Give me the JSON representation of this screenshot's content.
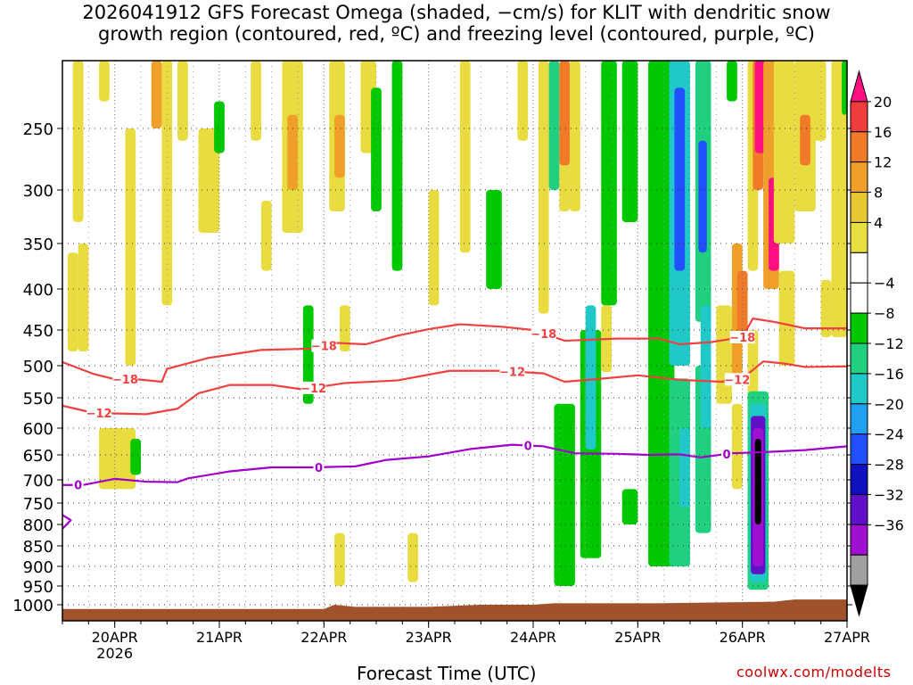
{
  "title": {
    "line1": "2026041912 GFS Forecast Omega (shaded, −cm/s) for KLIT with dendritic snow",
    "line2": "growth region (contoured, red, ºC) and freezing level (contoured, purple, ºC)"
  },
  "credit": "coolwx.com/modelts",
  "chart_data": {
    "type": "heatmap",
    "xlabel": "Forecast Time (UTC)",
    "ylabel": "",
    "x_ticks": [
      {
        "label": "20APR",
        "sub": "2026"
      },
      {
        "label": "21APR",
        "sub": ""
      },
      {
        "label": "22APR",
        "sub": ""
      },
      {
        "label": "23APR",
        "sub": ""
      },
      {
        "label": "24APR",
        "sub": ""
      },
      {
        "label": "25APR",
        "sub": ""
      },
      {
        "label": "26APR",
        "sub": ""
      },
      {
        "label": "27APR",
        "sub": ""
      }
    ],
    "xlim_days": [
      19.5,
      27.0
    ],
    "y_ticks": [
      "250",
      "300",
      "350",
      "400",
      "450",
      "500",
      "550",
      "600",
      "650",
      "700",
      "750",
      "800",
      "850",
      "900",
      "950",
      "1000"
    ],
    "y_units": "hPa",
    "colorbar": {
      "labels": [
        "20",
        "16",
        "12",
        "8",
        "4",
        "−4",
        "−8",
        "−12",
        "−16",
        "−20",
        "−24",
        "−28",
        "−32",
        "−36"
      ],
      "colors": [
        "#ff1080",
        "#f03c3c",
        "#f07a28",
        "#f0a028",
        "#e8c830",
        "#e8e040",
        "#ffffff",
        "#ffffff",
        "#00c800",
        "#20d080",
        "#20c8c8",
        "#20a0f0",
        "#2050ff",
        "#1010c0",
        "#6010c8",
        "#a010d0",
        "#a0a0a0",
        "#000000"
      ]
    },
    "contours": [
      {
        "name": "−18",
        "color": "#f04040",
        "label": "−18",
        "points": [
          [
            19.5,
            495
          ],
          [
            19.8,
            513
          ],
          [
            20.0,
            521
          ],
          [
            20.2,
            521
          ],
          [
            20.45,
            525
          ],
          [
            20.5,
            505
          ],
          [
            20.9,
            489
          ],
          [
            21.4,
            478
          ],
          [
            21.9,
            476
          ],
          [
            22.1,
            468
          ],
          [
            22.4,
            470
          ],
          [
            22.7,
            458
          ],
          [
            23.0,
            449
          ],
          [
            23.3,
            443
          ],
          [
            23.7,
            446
          ],
          [
            24.0,
            450
          ],
          [
            24.3,
            465
          ],
          [
            24.8,
            462
          ],
          [
            25.2,
            462
          ],
          [
            25.4,
            470
          ],
          [
            25.7,
            467
          ],
          [
            26.0,
            460
          ],
          [
            26.1,
            436
          ],
          [
            26.3,
            440
          ],
          [
            26.6,
            448
          ],
          [
            27.0,
            448
          ]
        ]
      },
      {
        "name": "−12",
        "color": "#f04040",
        "label": "−12",
        "points": [
          [
            19.5,
            563
          ],
          [
            19.8,
            575
          ],
          [
            20.3,
            577
          ],
          [
            20.6,
            568
          ],
          [
            20.8,
            543
          ],
          [
            21.1,
            530
          ],
          [
            21.5,
            530
          ],
          [
            21.8,
            537
          ],
          [
            22.2,
            527
          ],
          [
            22.7,
            523
          ],
          [
            23.2,
            508
          ],
          [
            23.7,
            508
          ],
          [
            24.1,
            512
          ],
          [
            24.3,
            525
          ],
          [
            24.6,
            521
          ],
          [
            25.0,
            515
          ],
          [
            25.4,
            522
          ],
          [
            25.8,
            525
          ],
          [
            26.0,
            520
          ],
          [
            26.2,
            494
          ],
          [
            26.4,
            497
          ],
          [
            26.6,
            502
          ],
          [
            27.0,
            501
          ]
        ]
      },
      {
        "name": "0",
        "color": "#a000c8",
        "label": "0",
        "points": [
          [
            19.5,
            711
          ],
          [
            19.7,
            711
          ],
          [
            20.0,
            698
          ],
          [
            20.3,
            704
          ],
          [
            20.6,
            705
          ],
          [
            20.7,
            697
          ],
          [
            21.1,
            683
          ],
          [
            21.5,
            675
          ],
          [
            21.9,
            675
          ],
          [
            22.3,
            673
          ],
          [
            22.6,
            660
          ],
          [
            23.0,
            653
          ],
          [
            23.4,
            639
          ],
          [
            23.8,
            631
          ],
          [
            24.1,
            634
          ],
          [
            24.4,
            647
          ],
          [
            24.8,
            648
          ],
          [
            25.1,
            650
          ],
          [
            25.4,
            649
          ],
          [
            25.6,
            655
          ],
          [
            25.9,
            647
          ],
          [
            26.2,
            645
          ],
          [
            26.6,
            641
          ],
          [
            27.0,
            634
          ]
        ]
      },
      {
        "name": "0",
        "color": "#a000c8",
        "label": "",
        "points": [
          [
            19.5,
            778
          ],
          [
            19.58,
            790
          ],
          [
            19.5,
            810
          ]
        ]
      }
    ],
    "omega_cells": [
      {
        "x": [
          19.55,
          19.65
        ],
        "p": [
          360,
          480
        ],
        "v": 5
      },
      {
        "x": [
          19.6,
          19.7
        ],
        "p": [
          180,
          330
        ],
        "v": 5
      },
      {
        "x": [
          19.65,
          19.75
        ],
        "p": [
          350,
          480
        ],
        "v": 5
      },
      {
        "x": [
          19.85,
          19.95
        ],
        "p": [
          180,
          230
        ],
        "v": 6
      },
      {
        "x": [
          19.85,
          20.2
        ],
        "p": [
          600,
          720
        ],
        "v": 5
      },
      {
        "x": [
          20.1,
          20.2
        ],
        "p": [
          250,
          500
        ],
        "v": 5
      },
      {
        "x": [
          20.15,
          20.25
        ],
        "p": [
          620,
          690
        ],
        "v": -6
      },
      {
        "x": [
          20.35,
          20.45
        ],
        "p": [
          150,
          250
        ],
        "v": 8
      },
      {
        "x": [
          20.45,
          20.55
        ],
        "p": [
          170,
          420
        ],
        "v": 5
      },
      {
        "x": [
          20.6,
          20.7
        ],
        "p": [
          180,
          260
        ],
        "v": 5
      },
      {
        "x": [
          20.8,
          21.0
        ],
        "p": [
          250,
          340
        ],
        "v": 5
      },
      {
        "x": [
          20.95,
          21.05
        ],
        "p": [
          230,
          270
        ],
        "v": -5
      },
      {
        "x": [
          21.3,
          21.4
        ],
        "p": [
          170,
          260
        ],
        "v": 5
      },
      {
        "x": [
          21.4,
          21.5
        ],
        "p": [
          310,
          380
        ],
        "v": 5
      },
      {
        "x": [
          21.6,
          21.8
        ],
        "p": [
          180,
          340
        ],
        "v": 5
      },
      {
        "x": [
          21.65,
          21.75
        ],
        "p": [
          240,
          300
        ],
        "v": 9
      },
      {
        "x": [
          21.8,
          21.9
        ],
        "p": [
          420,
          560
        ],
        "v": -6
      },
      {
        "x": [
          22.05,
          22.2
        ],
        "p": [
          180,
          320
        ],
        "v": 6
      },
      {
        "x": [
          22.1,
          22.2
        ],
        "p": [
          240,
          290
        ],
        "v": 10
      },
      {
        "x": [
          22.1,
          22.2
        ],
        "p": [
          820,
          950
        ],
        "v": 5
      },
      {
        "x": [
          22.15,
          22.25
        ],
        "p": [
          420,
          480
        ],
        "v": 5
      },
      {
        "x": [
          22.35,
          22.5
        ],
        "p": [
          180,
          270
        ],
        "v": 5
      },
      {
        "x": [
          22.45,
          22.55
        ],
        "p": [
          220,
          320
        ],
        "v": -6
      },
      {
        "x": [
          22.65,
          22.75
        ],
        "p": [
          180,
          380
        ],
        "v": -6
      },
      {
        "x": [
          22.8,
          22.9
        ],
        "p": [
          820,
          940
        ],
        "v": 5
      },
      {
        "x": [
          23.0,
          23.1
        ],
        "p": [
          300,
          420
        ],
        "v": 5
      },
      {
        "x": [
          23.3,
          23.4
        ],
        "p": [
          200,
          360
        ],
        "v": 5
      },
      {
        "x": [
          23.55,
          23.7
        ],
        "p": [
          300,
          400
        ],
        "v": -6
      },
      {
        "x": [
          23.85,
          23.95
        ],
        "p": [
          170,
          260
        ],
        "v": 5
      },
      {
        "x": [
          24.05,
          24.15
        ],
        "p": [
          200,
          430
        ],
        "v": 5
      },
      {
        "x": [
          24.15,
          24.25
        ],
        "p": [
          150,
          300
        ],
        "v": -8
      },
      {
        "x": [
          24.25,
          24.35
        ],
        "p": [
          150,
          320
        ],
        "v": 6
      },
      {
        "x": [
          24.25,
          24.35
        ],
        "p": [
          190,
          280
        ],
        "v": 12
      },
      {
        "x": [
          24.35,
          24.45
        ],
        "p": [
          150,
          320
        ],
        "v": 5
      },
      {
        "x": [
          24.2,
          24.4
        ],
        "p": [
          560,
          950
        ],
        "v": -6
      },
      {
        "x": [
          24.45,
          24.65
        ],
        "p": [
          450,
          880
        ],
        "v": -7
      },
      {
        "x": [
          24.5,
          24.6
        ],
        "p": [
          420,
          640
        ],
        "v": -12
      },
      {
        "x": [
          24.65,
          24.8
        ],
        "p": [
          180,
          420
        ],
        "v": -6
      },
      {
        "x": [
          24.65,
          24.75
        ],
        "p": [
          420,
          510
        ],
        "v": 5
      },
      {
        "x": [
          24.85,
          25.0
        ],
        "p": [
          150,
          330
        ],
        "v": -6
      },
      {
        "x": [
          24.85,
          25.0
        ],
        "p": [
          720,
          800
        ],
        "v": -6
      },
      {
        "x": [
          25.1,
          25.35
        ],
        "p": [
          150,
          900
        ],
        "v": -7
      },
      {
        "x": [
          25.15,
          25.25
        ],
        "p": [
          180,
          460
        ],
        "v": -6
      },
      {
        "x": [
          25.3,
          25.5
        ],
        "p": [
          150,
          500
        ],
        "v": -12
      },
      {
        "x": [
          25.35,
          25.45
        ],
        "p": [
          220,
          380
        ],
        "v": -20
      },
      {
        "x": [
          25.3,
          25.5
        ],
        "p": [
          520,
          900
        ],
        "v": -8
      },
      {
        "x": [
          25.4,
          25.5
        ],
        "p": [
          600,
          760
        ],
        "v": -12
      },
      {
        "x": [
          25.55,
          25.7
        ],
        "p": [
          180,
          440
        ],
        "v": -10
      },
      {
        "x": [
          25.58,
          25.66
        ],
        "p": [
          260,
          360
        ],
        "v": -20
      },
      {
        "x": [
          25.55,
          25.7
        ],
        "p": [
          500,
          820
        ],
        "v": -8
      },
      {
        "x": [
          25.6,
          25.7
        ],
        "p": [
          420,
          600
        ],
        "v": -12
      },
      {
        "x": [
          25.85,
          25.95
        ],
        "p": [
          160,
          230
        ],
        "v": -6
      },
      {
        "x": [
          25.75,
          25.9
        ],
        "p": [
          420,
          560
        ],
        "v": 5
      },
      {
        "x": [
          25.9,
          26.0
        ],
        "p": [
          350,
          520
        ],
        "v": 8
      },
      {
        "x": [
          25.95,
          26.05
        ],
        "p": [
          380,
          460
        ],
        "v": 12
      },
      {
        "x": [
          25.9,
          26.0
        ],
        "p": [
          560,
          720
        ],
        "v": 5
      },
      {
        "x": [
          26.05,
          26.15
        ],
        "p": [
          200,
          380
        ],
        "v": 6
      },
      {
        "x": [
          26.05,
          26.15
        ],
        "p": [
          450,
          580
        ],
        "v": 5
      },
      {
        "x": [
          26.1,
          26.2
        ],
        "p": [
          150,
          300
        ],
        "v": 14
      },
      {
        "x": [
          26.12,
          26.22
        ],
        "p": [
          160,
          270
        ],
        "v": 20
      },
      {
        "x": [
          26.05,
          26.25
        ],
        "p": [
          540,
          960
        ],
        "v": -8
      },
      {
        "x": [
          26.07,
          26.23
        ],
        "p": [
          560,
          940
        ],
        "v": -14
      },
      {
        "x": [
          26.08,
          26.22
        ],
        "p": [
          580,
          920
        ],
        "v": -24
      },
      {
        "x": [
          26.1,
          26.2
        ],
        "p": [
          600,
          900
        ],
        "v": -30
      },
      {
        "x": [
          26.12,
          26.18
        ],
        "p": [
          620,
          800
        ],
        "v": -40
      },
      {
        "x": [
          26.2,
          26.35
        ],
        "p": [
          160,
          400
        ],
        "v": 10
      },
      {
        "x": [
          26.25,
          26.35
        ],
        "p": [
          290,
          380
        ],
        "v": 20
      },
      {
        "x": [
          26.3,
          26.5
        ],
        "p": [
          180,
          350
        ],
        "v": 7
      },
      {
        "x": [
          26.35,
          26.5
        ],
        "p": [
          380,
          500
        ],
        "v": 5
      },
      {
        "x": [
          26.5,
          26.7
        ],
        "p": [
          170,
          320
        ],
        "v": 7
      },
      {
        "x": [
          26.55,
          26.65
        ],
        "p": [
          240,
          280
        ],
        "v": 13
      },
      {
        "x": [
          26.65,
          26.8
        ],
        "p": [
          170,
          260
        ],
        "v": 6
      },
      {
        "x": [
          26.75,
          26.85
        ],
        "p": [
          390,
          460
        ],
        "v": 5
      },
      {
        "x": [
          26.85,
          27.0
        ],
        "p": [
          180,
          460
        ],
        "v": 5
      },
      {
        "x": [
          26.95,
          27.0
        ],
        "p": [
          150,
          240
        ],
        "v": -6
      }
    ],
    "terrain": {
      "color": "#a0522d",
      "points": [
        [
          19.5,
          1008
        ],
        [
          22.0,
          1008
        ],
        [
          22.1,
          1000
        ],
        [
          22.3,
          1004
        ],
        [
          23.0,
          1004
        ],
        [
          23.5,
          1000
        ],
        [
          24.0,
          1000
        ],
        [
          24.2,
          996
        ],
        [
          25.2,
          996
        ],
        [
          26.3,
          992
        ],
        [
          26.5,
          986
        ],
        [
          27.0,
          986
        ]
      ]
    }
  }
}
